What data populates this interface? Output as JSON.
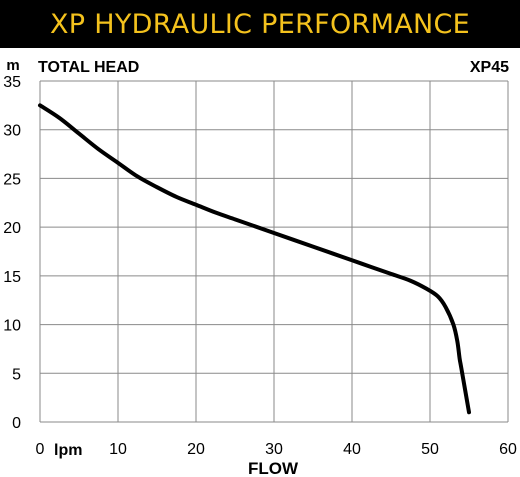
{
  "banner": {
    "title": "XP HYDRAULIC PERFORMANCE",
    "background": "#000000",
    "text_color": "#f4c21d"
  },
  "chart_data": {
    "type": "line",
    "title": "XP45",
    "ylabel": "TOTAL HEAD",
    "y_unit": "m",
    "xlabel": "FLOW",
    "x_unit": "lpm",
    "xlim": [
      0,
      60
    ],
    "ylim": [
      0,
      35
    ],
    "x_ticks": [
      "0",
      "10",
      "20",
      "30",
      "40",
      "50",
      "60"
    ],
    "y_ticks": [
      "0",
      "5",
      "10",
      "15",
      "20",
      "25",
      "30",
      "35"
    ],
    "grid": true,
    "line_color": "#000000",
    "series": [
      {
        "x": [
          0,
          2.5,
          5,
          7.5,
          10,
          12.5,
          15,
          17.5,
          20,
          22.5,
          25,
          27.5,
          30,
          32.5,
          35,
          37.5,
          40,
          42.5,
          45,
          47.5,
          49.5,
          51,
          52,
          53,
          53.5,
          53.8,
          54,
          55
        ],
        "y": [
          32.5,
          31.2,
          29.6,
          28,
          26.6,
          25.2,
          24.1,
          23.1,
          22.3,
          21.5,
          20.8,
          20.1,
          19.4,
          18.7,
          18,
          17.3,
          16.6,
          15.9,
          15.2,
          14.5,
          13.7,
          12.9,
          11.8,
          10,
          8.3,
          6.5,
          5.6,
          1
        ]
      }
    ]
  }
}
